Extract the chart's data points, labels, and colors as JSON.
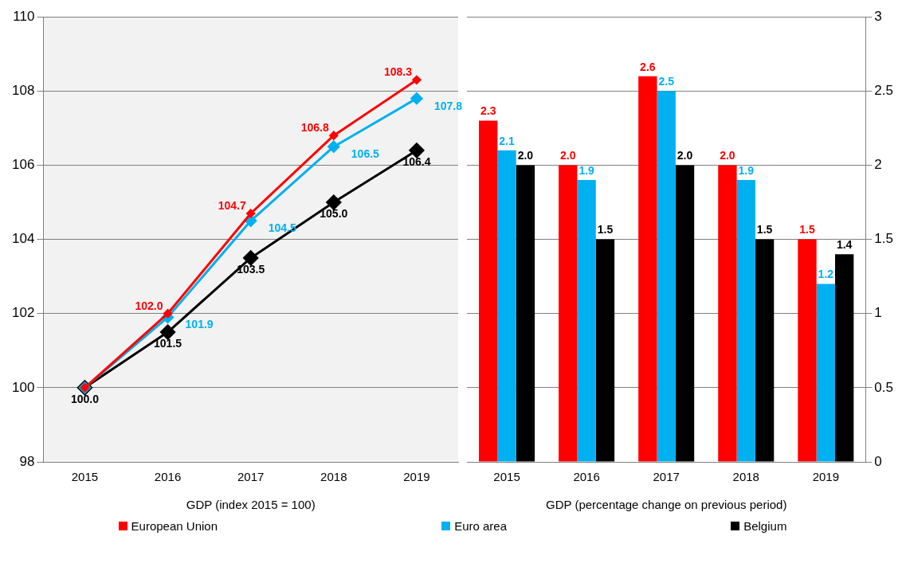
{
  "chart_data": [
    {
      "type": "line",
      "xlabel": "GDP (index 2015 = 100)",
      "categories": [
        "2015",
        "2016",
        "2017",
        "2018",
        "2019"
      ],
      "ylim": [
        98,
        110
      ],
      "yticks": [
        98,
        100,
        102,
        104,
        106,
        108,
        110
      ],
      "grid": "y",
      "marker": "diamond",
      "series": [
        {
          "color": "#ff0000",
          "values": [
            100.0,
            102.0,
            104.7,
            106.8,
            108.3
          ],
          "value_labels": [
            null,
            "102.0",
            "104.7",
            "106.8",
            "108.3"
          ]
        },
        {
          "color": "#00b0f0",
          "values": [
            100.0,
            101.9,
            104.5,
            106.5,
            107.8
          ],
          "value_labels": [
            null,
            "101.9",
            "104.5",
            "106.5",
            "107.8"
          ]
        },
        {
          "color": "#000000",
          "values": [
            100.0,
            101.5,
            103.5,
            105.0,
            106.4
          ],
          "value_labels": [
            "100.0",
            "101.5",
            "103.5",
            "105.0",
            "106.4"
          ]
        }
      ]
    },
    {
      "type": "bar",
      "xlabel": "GDP (percentage change on previous period)",
      "categories": [
        "2015",
        "2016",
        "2017",
        "2018",
        "2019"
      ],
      "ylim": [
        0,
        3
      ],
      "yticks": [
        0,
        0.5,
        1,
        1.5,
        2,
        2.5,
        3
      ],
      "grid": "y",
      "legend": "bottom",
      "series": [
        {
          "name": "European Union",
          "color": "#ff0000",
          "values": [
            2.3,
            2.0,
            2.6,
            2.0,
            1.5
          ],
          "value_labels": [
            "2.3",
            "2.0",
            "2.6",
            "2.0",
            "1.5"
          ]
        },
        {
          "name": "Euro area",
          "color": "#00b0f0",
          "values": [
            2.1,
            1.9,
            2.5,
            1.9,
            1.2
          ],
          "value_labels": [
            "2.1",
            "1.9",
            "2.5",
            "1.9",
            "1.2"
          ]
        },
        {
          "name": "Belgium",
          "color": "#000000",
          "values": [
            2.0,
            1.5,
            2.0,
            1.5,
            1.4
          ],
          "value_labels": [
            "2.0",
            "1.5",
            "2.0",
            "1.5",
            "1.4"
          ]
        }
      ]
    }
  ]
}
